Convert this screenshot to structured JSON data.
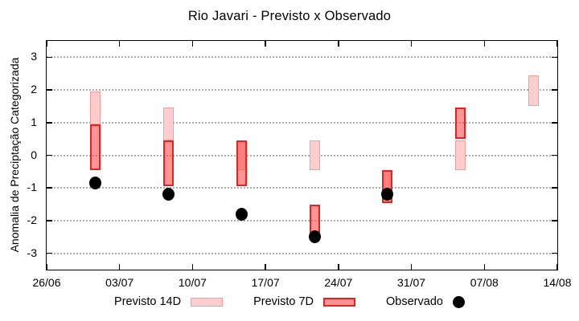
{
  "chart_data": {
    "type": "bar",
    "variant": "forecast-range-bars-with-observed-points",
    "title": "Rio Javari - Previsto x Observado",
    "ylabel": "Anomalia de Preciptação Categorizada",
    "xlabel": "",
    "ylim": [
      -3.5,
      3.5
    ],
    "yticks": [
      3,
      2,
      1,
      0,
      -1,
      -2,
      -3
    ],
    "grid": "horizontal-dotted",
    "legend_position": "bottom",
    "x_axis": {
      "days_span": 49,
      "ticks": [
        {
          "day": 0,
          "label": "26/06"
        },
        {
          "day": 7,
          "label": "03/07"
        },
        {
          "day": 14,
          "label": "10/07"
        },
        {
          "day": 21,
          "label": "17/07"
        },
        {
          "day": 28,
          "label": "24/07"
        },
        {
          "day": 35,
          "label": "31/07"
        },
        {
          "day": 42,
          "label": "07/08"
        },
        {
          "day": 49,
          "label": "14/08"
        }
      ]
    },
    "groups_x_days": [
      4.7,
      11.7,
      18.7,
      25.7,
      32.7,
      39.7,
      46.7
    ],
    "groups_dates_approx": [
      "01/07",
      "08/07",
      "15/07",
      "22/07",
      "29/07",
      "05/08",
      "12/08"
    ],
    "series": [
      {
        "name": "Previsto 14D",
        "type": "range-bar",
        "fill": "#ffcdcd",
        "border": "#f29e99",
        "ranges": [
          [
            0.95,
            1.95
          ],
          [
            0.45,
            1.45
          ],
          [
            -0.45,
            0.45
          ],
          [
            -0.45,
            0.45
          ],
          [
            -1.35,
            -0.45
          ],
          [
            -0.45,
            0.45
          ],
          [
            1.5,
            2.45
          ]
        ]
      },
      {
        "name": "Previsto 7D",
        "type": "range-bar",
        "fill": "rgba(255,70,70,0.58)",
        "border": "#e32222",
        "ranges": [
          [
            -0.45,
            0.95
          ],
          [
            -0.95,
            0.45
          ],
          [
            -0.95,
            0.45
          ],
          [
            -2.4,
            -1.5
          ],
          [
            -1.45,
            -0.45
          ],
          [
            0.5,
            1.45
          ],
          null
        ]
      },
      {
        "name": "Observado",
        "type": "scatter",
        "color": "#000000",
        "values": [
          -0.85,
          -1.2,
          -1.8,
          -2.5,
          -1.2,
          null,
          null
        ]
      }
    ]
  },
  "colors": {
    "background": "#ffffff",
    "axis": "#000000",
    "gridline": "#999999",
    "previsto_14d_fill": "#ffcdcd",
    "previsto_14d_border": "#f29e99",
    "previsto_7d_fill_overlap": "#ff7d7d",
    "previsto_7d_fill_plain": "#ff9494",
    "previsto_7d_border": "#e32222",
    "observado": "#000000"
  }
}
